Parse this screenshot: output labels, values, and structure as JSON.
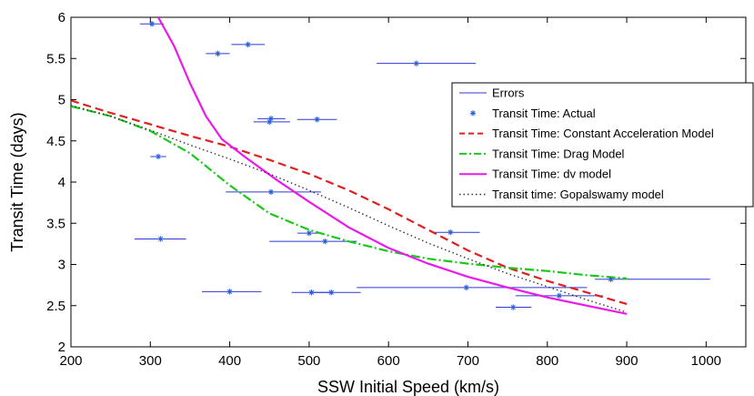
{
  "chart_data": {
    "type": "scatter",
    "xlabel": "SSW Initial Speed (km/s)",
    "ylabel": "Transit Time (days)",
    "xlim": [
      200,
      1050
    ],
    "ylim": [
      2,
      6
    ],
    "x_ticks": [
      200,
      300,
      400,
      500,
      600,
      700,
      800,
      900,
      1000
    ],
    "y_ticks": [
      2,
      2.5,
      3,
      3.5,
      4,
      4.5,
      5,
      5.5,
      6
    ],
    "grid": false,
    "legend_position": "top-right",
    "colors": {
      "errors": "#2a3bd6",
      "actual": "#2a5bd6",
      "constant_acceleration": "#e02020",
      "drag": "#19c919",
      "dv": "#ea19ea",
      "gopalswamy": "#333333"
    },
    "legend": [
      {
        "key": "errors",
        "label": "Errors",
        "style": "line"
      },
      {
        "key": "actual",
        "label": "Transit Time: Actual",
        "style": "marker"
      },
      {
        "key": "constant_acceleration",
        "label": "Transit Time: Constant Acceleration Model",
        "style": "dashed"
      },
      {
        "key": "drag",
        "label": "Transit Time: Drag Model",
        "style": "dashdot"
      },
      {
        "key": "dv",
        "label": "Transit Time: dv model",
        "style": "solid"
      },
      {
        "key": "gopalswamy",
        "label": "Transit time: Gopalswamy model",
        "style": "dotted"
      }
    ],
    "actual_points": [
      {
        "x": 302,
        "y": 5.92,
        "xerr_low": 287,
        "xerr_high": 317
      },
      {
        "x": 423,
        "y": 5.67,
        "xerr_low": 402,
        "xerr_high": 444
      },
      {
        "x": 385,
        "y": 5.56,
        "xerr_low": 370,
        "xerr_high": 400
      },
      {
        "x": 635,
        "y": 5.44,
        "xerr_low": 585,
        "xerr_high": 710
      },
      {
        "x": 452,
        "y": 4.77,
        "xerr_low": 435,
        "xerr_high": 470
      },
      {
        "x": 510,
        "y": 4.76,
        "xerr_low": 485,
        "xerr_high": 535
      },
      {
        "x": 450,
        "y": 4.73,
        "xerr_low": 430,
        "xerr_high": 476
      },
      {
        "x": 310,
        "y": 4.31,
        "xerr_low": 300,
        "xerr_high": 320
      },
      {
        "x": 452,
        "y": 3.88,
        "xerr_low": 395,
        "xerr_high": 515
      },
      {
        "x": 678,
        "y": 3.39,
        "xerr_low": 655,
        "xerr_high": 715
      },
      {
        "x": 500,
        "y": 3.38,
        "xerr_low": 485,
        "xerr_high": 515
      },
      {
        "x": 313,
        "y": 3.31,
        "xerr_low": 280,
        "xerr_high": 345
      },
      {
        "x": 520,
        "y": 3.28,
        "xerr_low": 450,
        "xerr_high": 560
      },
      {
        "x": 880,
        "y": 2.82,
        "xerr_low": 860,
        "xerr_high": 1005
      },
      {
        "x": 698,
        "y": 2.72,
        "xerr_low": 560,
        "xerr_high": 850
      },
      {
        "x": 400,
        "y": 2.67,
        "xerr_low": 365,
        "xerr_high": 440
      },
      {
        "x": 503,
        "y": 2.66,
        "xerr_low": 478,
        "xerr_high": 528
      },
      {
        "x": 528,
        "y": 2.66,
        "xerr_low": 505,
        "xerr_high": 565
      },
      {
        "x": 815,
        "y": 2.62,
        "xerr_low": 760,
        "xerr_high": 870
      },
      {
        "x": 757,
        "y": 2.48,
        "xerr_low": 735,
        "xerr_high": 780
      }
    ],
    "models": {
      "constant_acceleration": {
        "x": [
          200,
          250,
          300,
          350,
          400,
          450,
          500,
          550,
          600,
          650,
          700,
          750,
          800,
          850,
          900
        ],
        "y": [
          4.99,
          4.84,
          4.7,
          4.56,
          4.43,
          4.27,
          4.1,
          3.9,
          3.67,
          3.42,
          3.17,
          2.96,
          2.8,
          2.66,
          2.52
        ]
      },
      "drag": {
        "x": [
          200,
          250,
          300,
          350,
          400,
          450,
          500,
          550,
          600,
          650,
          700,
          750,
          800,
          850,
          900
        ],
        "y": [
          4.92,
          4.8,
          4.62,
          4.35,
          3.96,
          3.62,
          3.42,
          3.28,
          3.16,
          3.07,
          3.01,
          2.96,
          2.92,
          2.87,
          2.83
        ]
      },
      "dv": {
        "x": [
          310,
          330,
          350,
          370,
          390,
          420,
          460,
          500,
          550,
          600,
          650,
          700,
          750,
          800,
          850,
          900
        ],
        "y": [
          6.0,
          5.65,
          5.2,
          4.8,
          4.52,
          4.3,
          4.02,
          3.76,
          3.45,
          3.2,
          3.01,
          2.85,
          2.72,
          2.6,
          2.5,
          2.4
        ]
      },
      "gopalswamy": {
        "x": [
          200,
          250,
          300,
          350,
          400,
          450,
          500,
          550,
          600,
          650,
          700,
          750,
          800,
          850,
          900
        ],
        "y": [
          4.93,
          4.8,
          4.63,
          4.45,
          4.28,
          4.1,
          3.9,
          3.69,
          3.47,
          3.26,
          3.07,
          2.89,
          2.73,
          2.57,
          2.42
        ]
      }
    }
  }
}
